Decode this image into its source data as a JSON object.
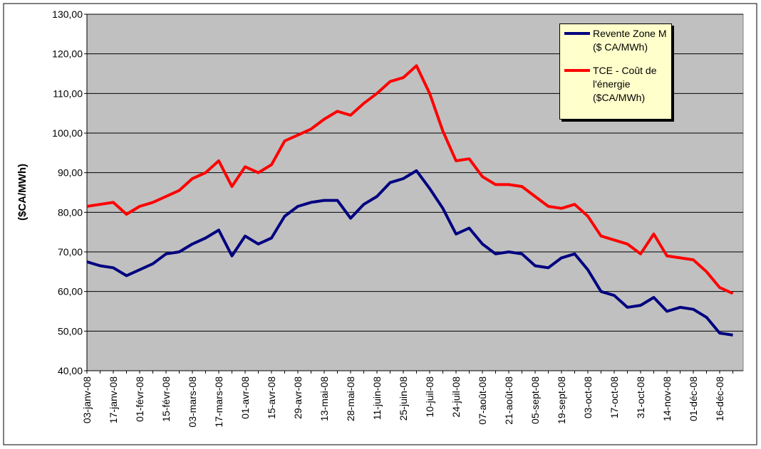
{
  "chart_data": {
    "type": "line",
    "y_label": "($CA/MWh)",
    "categories": [
      "03-janv-08",
      null,
      "17-janv-08",
      null,
      "01-févr-08",
      null,
      "15-févr-08",
      null,
      "03-mars-08",
      null,
      "17-mars-08",
      null,
      "01-avr-08",
      null,
      "15-avr-08",
      null,
      "29-avr-08",
      null,
      "13-mai-08",
      null,
      "28-mai-08",
      null,
      "11-juin-08",
      null,
      "25-juin-08",
      null,
      "10-juil-08",
      null,
      "24-juil-08",
      null,
      "07-août-08",
      null,
      "21-août-08",
      null,
      "05-sept-08",
      null,
      "19-sept-08",
      null,
      "03-oct-08",
      null,
      "17-oct-08",
      null,
      "31-oct-08",
      null,
      "14-nov-08",
      null,
      "01-déc-08",
      null,
      "16-déc-08",
      null
    ],
    "series": [
      {
        "name": "Revente Zone M ($ CA/MWh)",
        "color": "#000080",
        "values": [
          67.5,
          66.5,
          66,
          64,
          65.5,
          67,
          69.5,
          70,
          72,
          73.5,
          75.5,
          69,
          74,
          72,
          73.5,
          79,
          81.5,
          82.5,
          83,
          83,
          78.5,
          82,
          84,
          87.5,
          88.5,
          90.5,
          86,
          81,
          74.5,
          76,
          72,
          69.5,
          70,
          69.5,
          66.5,
          66,
          68.5,
          69.5,
          65.5,
          60,
          59,
          56,
          56.5,
          58.5,
          55,
          56,
          55.5,
          53.5,
          49.5,
          49
        ]
      },
      {
        "name": "TCE - Coût de l'énergie ($CA/MWh)",
        "color": "#ff0000",
        "values": [
          81.5,
          82,
          82.5,
          79.5,
          81.5,
          82.5,
          84,
          85.5,
          88.5,
          90,
          93,
          86.5,
          91.5,
          90,
          92,
          98,
          99.5,
          101,
          103.5,
          105.5,
          104.5,
          107.5,
          110,
          113,
          114,
          117,
          110,
          100.5,
          93,
          93.5,
          89,
          87,
          87,
          86.5,
          84,
          81.5,
          81,
          82,
          79,
          74,
          73,
          72,
          69.5,
          74.5,
          69,
          68.5,
          68,
          65,
          61,
          59.5
        ]
      }
    ],
    "ylim": [
      40,
      130
    ],
    "yticks": [
      {
        "value": 40,
        "label": "40,00"
      },
      {
        "value": 50,
        "label": "50,00"
      },
      {
        "value": 60,
        "label": "60,00"
      },
      {
        "value": 70,
        "label": "70,00"
      },
      {
        "value": 80,
        "label": "80,00"
      },
      {
        "value": 90,
        "label": "90,00"
      },
      {
        "value": 100,
        "label": "100,00"
      },
      {
        "value": 110,
        "label": "110,00"
      },
      {
        "value": 120,
        "label": "120,00"
      },
      {
        "value": 130,
        "label": "130,00"
      }
    ],
    "grid": true
  }
}
